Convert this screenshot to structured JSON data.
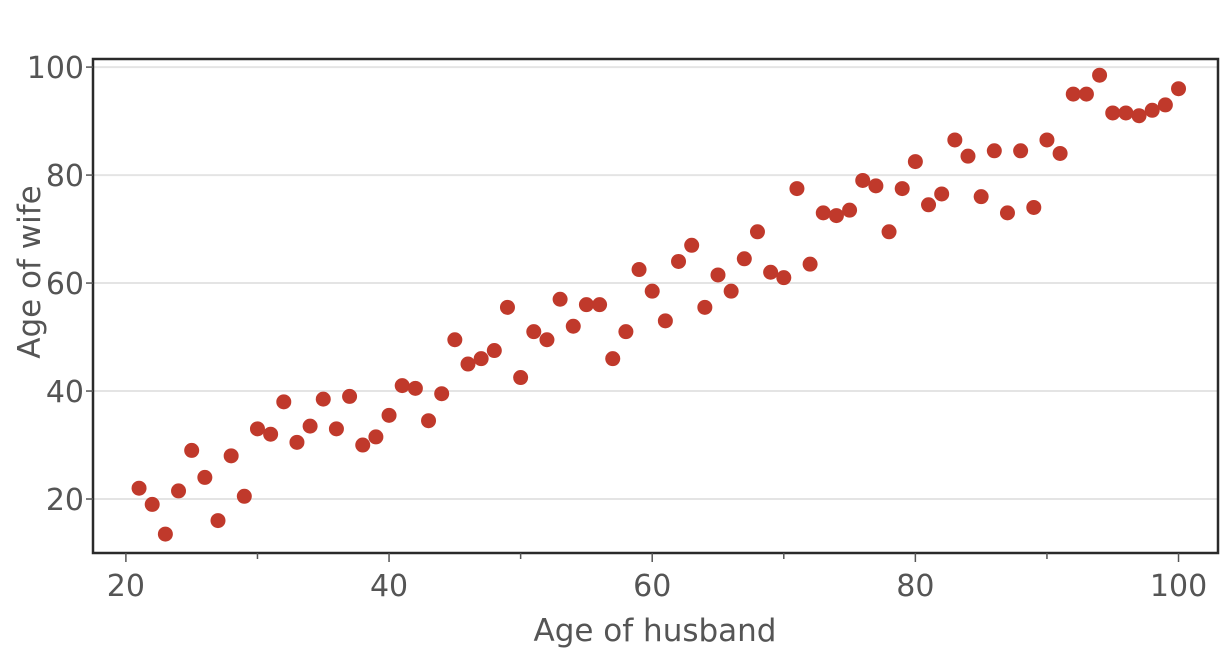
{
  "chart_data": {
    "type": "scatter",
    "xlabel": "Age of husband",
    "ylabel": "Age of wife",
    "xlim": [
      17.5,
      103
    ],
    "ylim": [
      10,
      101.5
    ],
    "x_ticks": [
      20,
      40,
      60,
      80,
      100
    ],
    "x_minor_ticks": [
      30,
      50,
      70,
      90
    ],
    "y_ticks": [
      20,
      40,
      60,
      80,
      100
    ],
    "grid": "horizontal",
    "point_color": "#c0392b",
    "points": [
      [
        21,
        22
      ],
      [
        22,
        19
      ],
      [
        23,
        13.5
      ],
      [
        24,
        21.5
      ],
      [
        25,
        29
      ],
      [
        26,
        24
      ],
      [
        27,
        16
      ],
      [
        28,
        28
      ],
      [
        29,
        20.5
      ],
      [
        30,
        33
      ],
      [
        31,
        32
      ],
      [
        32,
        38
      ],
      [
        33,
        30.5
      ],
      [
        34,
        33.5
      ],
      [
        35,
        38.5
      ],
      [
        36,
        33
      ],
      [
        37,
        39
      ],
      [
        38,
        30
      ],
      [
        39,
        31.5
      ],
      [
        40,
        35.5
      ],
      [
        41,
        41
      ],
      [
        42,
        40.5
      ],
      [
        43,
        34.5
      ],
      [
        44,
        39.5
      ],
      [
        45,
        49.5
      ],
      [
        46,
        45
      ],
      [
        47,
        46
      ],
      [
        48,
        47.5
      ],
      [
        49,
        55.5
      ],
      [
        50,
        42.5
      ],
      [
        51,
        51
      ],
      [
        52,
        49.5
      ],
      [
        53,
        57
      ],
      [
        54,
        52
      ],
      [
        55,
        56
      ],
      [
        56,
        56
      ],
      [
        57,
        46
      ],
      [
        58,
        51
      ],
      [
        59,
        62.5
      ],
      [
        60,
        58.5
      ],
      [
        61,
        53
      ],
      [
        62,
        64
      ],
      [
        63,
        67
      ],
      [
        64,
        55.5
      ],
      [
        65,
        61.5
      ],
      [
        66,
        58.5
      ],
      [
        67,
        64.5
      ],
      [
        68,
        69.5
      ],
      [
        69,
        62
      ],
      [
        70,
        61
      ],
      [
        71,
        77.5
      ],
      [
        72,
        63.5
      ],
      [
        73,
        73
      ],
      [
        74,
        72.5
      ],
      [
        75,
        73.5
      ],
      [
        76,
        79
      ],
      [
        77,
        78
      ],
      [
        78,
        69.5
      ],
      [
        79,
        77.5
      ],
      [
        80,
        82.5
      ],
      [
        81,
        74.5
      ],
      [
        82,
        76.5
      ],
      [
        83,
        86.5
      ],
      [
        84,
        83.5
      ],
      [
        85,
        76
      ],
      [
        86,
        84.5
      ],
      [
        87,
        73
      ],
      [
        88,
        84.5
      ],
      [
        89,
        74
      ],
      [
        90,
        86.5
      ],
      [
        91,
        84
      ],
      [
        92,
        95
      ],
      [
        93,
        95
      ],
      [
        94,
        98.5
      ],
      [
        95,
        91.5
      ],
      [
        96,
        91.5
      ],
      [
        97,
        91
      ],
      [
        98,
        92
      ],
      [
        99,
        93
      ],
      [
        100,
        96
      ]
    ]
  }
}
